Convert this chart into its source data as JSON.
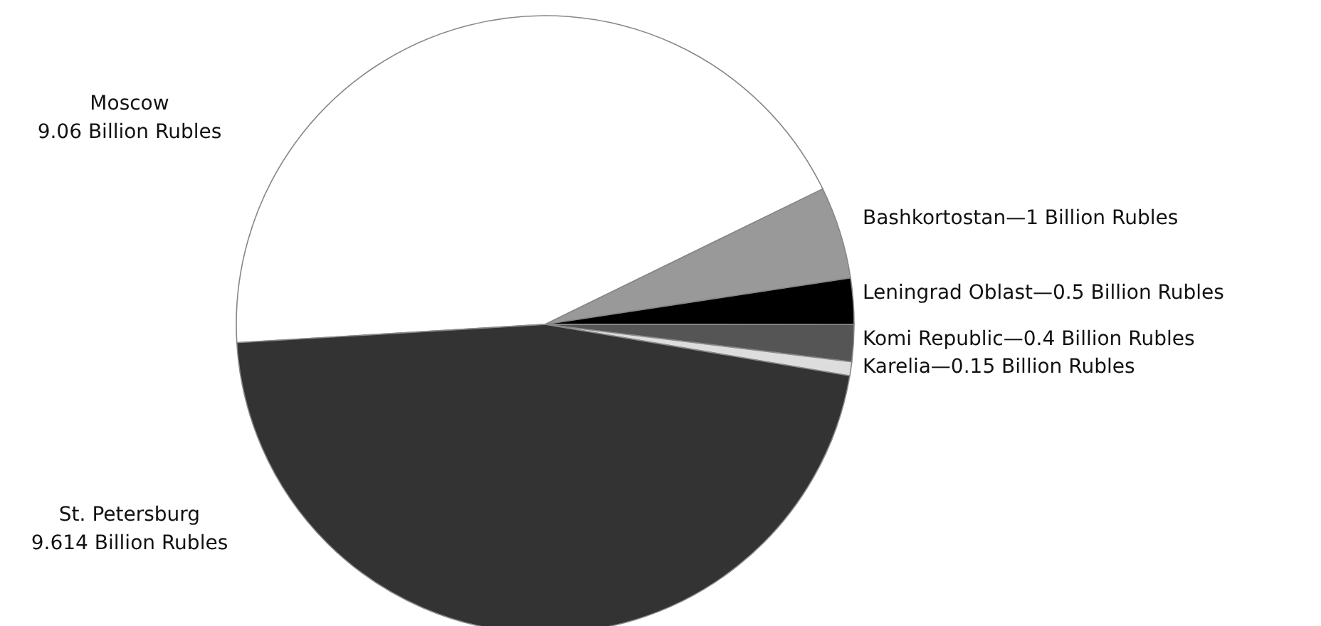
{
  "chart_data": {
    "type": "pie",
    "categories": [
      "Moscow",
      "Bashkortostan",
      "Leningrad Oblast",
      "Komi Republic",
      "Karelia",
      "St. Petersburg"
    ],
    "values": [
      9.06,
      1,
      0.5,
      0.4,
      0.15,
      9.614
    ],
    "value_labels": [
      "9.06 Billion Rubles",
      "—1 Billion Rubles",
      "—0.5 Billion Rubles",
      "—0.4 Billion Rubles",
      "—0.15 Billion Rubles",
      "9.614 Billion Rubles"
    ],
    "colors": [
      "#ffffff",
      "#999999",
      "#000000",
      "#555555",
      "#dddddd",
      "#333333"
    ],
    "legend": false
  }
}
